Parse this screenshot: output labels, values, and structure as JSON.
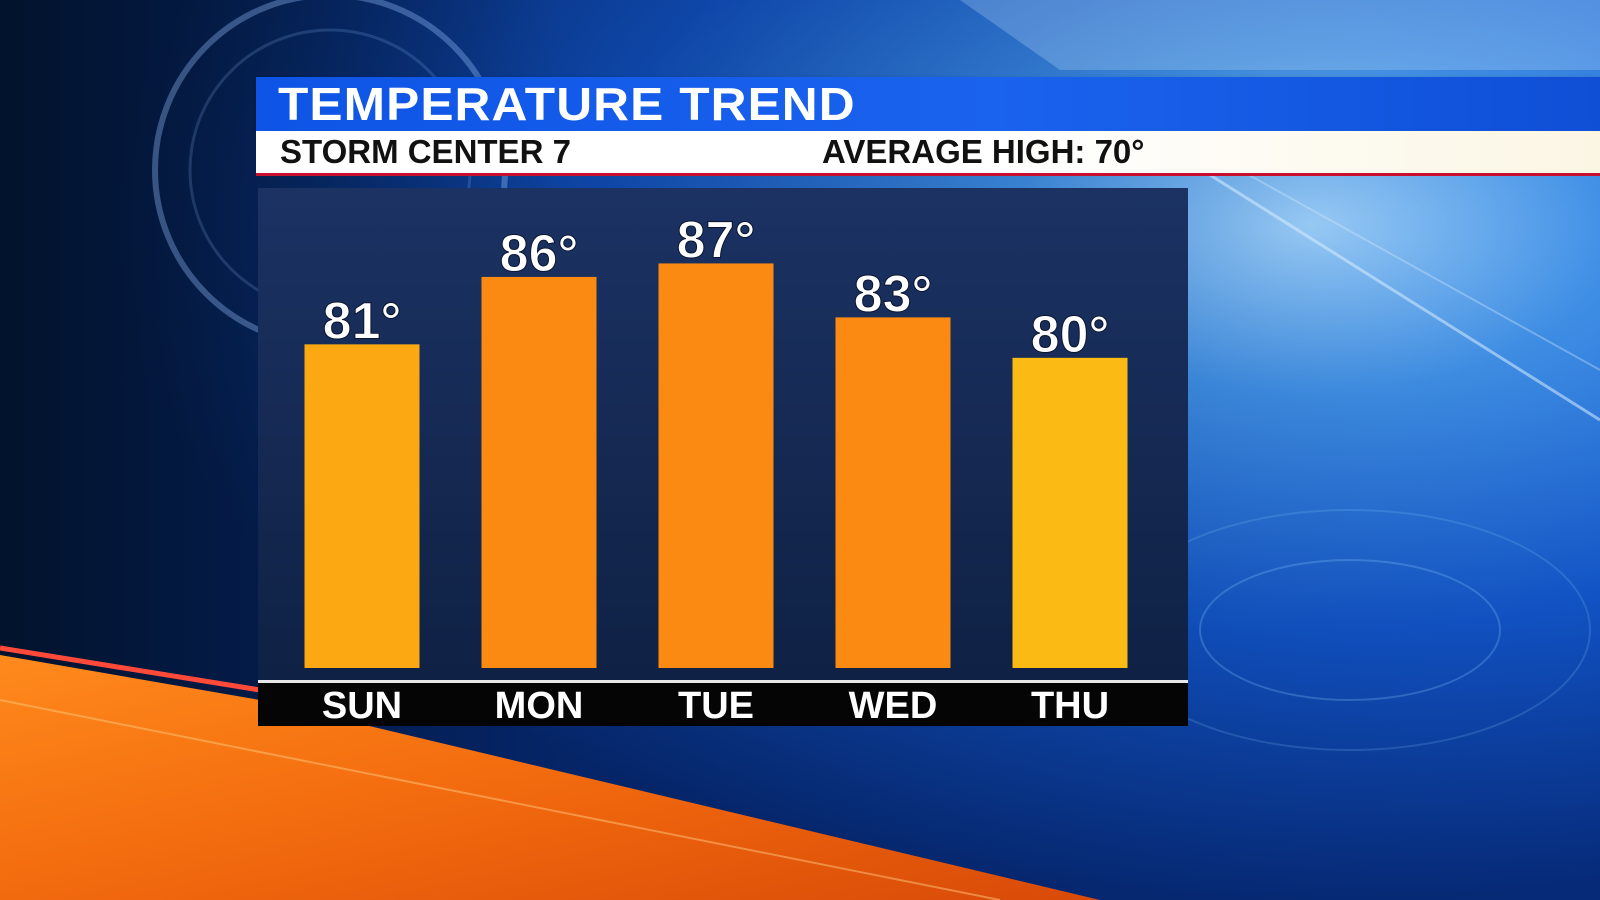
{
  "header": {
    "title": "TEMPERATURE TREND",
    "station": "STORM CENTER 7",
    "average_high": "AVERAGE HIGH: 70°"
  },
  "colors": {
    "bar": "#fb8a12",
    "bar_warm": "#fba812",
    "bar_yellow": "#fcbb14",
    "panel": "#15284f",
    "axis_band": "#050505",
    "title_blue": "#1a5ee8"
  },
  "chart_data": {
    "type": "bar",
    "title": "TEMPERATURE TREND",
    "categories": [
      "SUN",
      "MON",
      "TUE",
      "WED",
      "THU"
    ],
    "values": [
      81,
      86,
      87,
      83,
      80
    ],
    "data_labels": [
      "81°",
      "86°",
      "87°",
      "83°",
      "80°"
    ],
    "ylim": [
      57,
      92
    ],
    "grid": false,
    "legend": "none"
  }
}
